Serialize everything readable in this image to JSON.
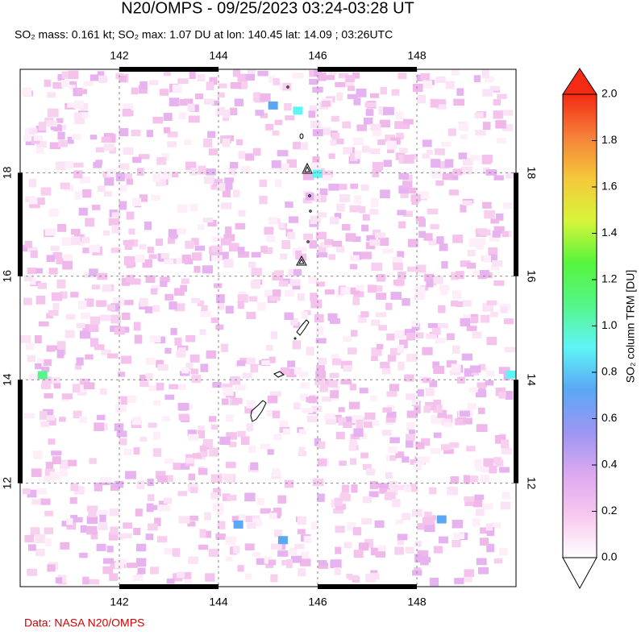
{
  "chart_data": {
    "type": "map",
    "title": "N20/OMPS - 09/25/2023 03:24-03:28 UT",
    "subtitle": "SO₂ mass: 0.161 kt; SO₂ max: 1.07 DU at lon: 140.45 lat: 14.09 ; 03:26UTC",
    "xlim": [
      140,
      150
    ],
    "ylim": [
      10,
      20
    ],
    "xticks": [
      142,
      144,
      146,
      148
    ],
    "yticks": [
      12,
      14,
      16,
      18
    ],
    "grid": true,
    "so2_pixels": [
      {
        "lon": 140.45,
        "lat": 14.09,
        "value": 1.07
      },
      {
        "lon": 145.6,
        "lat": 19.2,
        "value": 0.95
      },
      {
        "lon": 146.0,
        "lat": 17.98,
        "value": 0.9
      },
      {
        "lon": 149.9,
        "lat": 14.1,
        "value": 0.85
      },
      {
        "lon": 144.4,
        "lat": 11.2,
        "value": 0.8
      },
      {
        "lon": 145.3,
        "lat": 10.9,
        "value": 0.8
      },
      {
        "lon": 145.1,
        "lat": 19.3,
        "value": 0.8
      },
      {
        "lon": 148.5,
        "lat": 11.3,
        "value": 0.75
      }
    ],
    "colorbar": {
      "label": "SO₂ column TRM [DU]",
      "lim": [
        0,
        2
      ],
      "ticks": [
        {
          "value": 0,
          "label": "0.0"
        },
        0.2,
        0.4,
        0.6,
        0.8,
        {
          "value": 1,
          "label": "1.0"
        },
        1.2,
        1.4,
        1.6,
        1.8,
        {
          "value": 2,
          "label": "2.0"
        }
      ],
      "colors": [
        "#ffffff",
        "#f9c8ef",
        "#dba8f0",
        "#9a96f2",
        "#5aa8f5",
        "#5ff5f5",
        "#55f58a",
        "#56f53c",
        "#d8f53a",
        "#f5c83a",
        "#f5803a",
        "#f52a14"
      ]
    },
    "credit": "Data: NASA N20/OMPS"
  }
}
